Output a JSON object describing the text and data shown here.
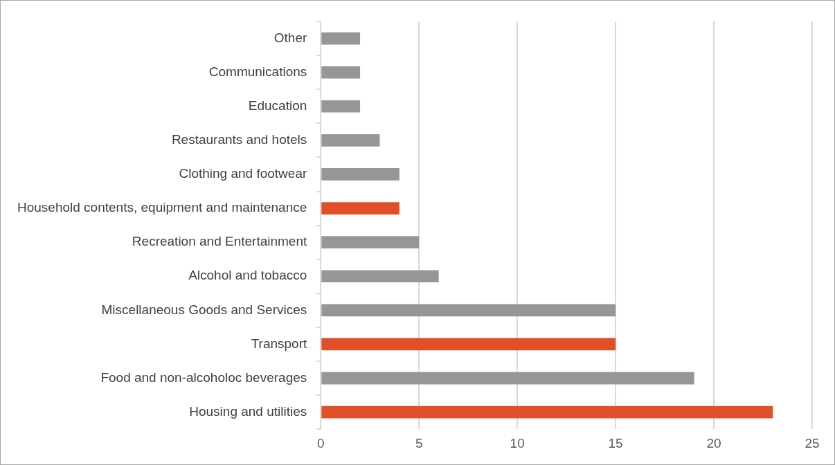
{
  "chart_data": {
    "type": "bar",
    "orientation": "horizontal",
    "categories": [
      "Other",
      "Communications",
      "Education",
      "Restaurants and hotels",
      "Clothing and footwear",
      "Household contents, equipment and maintenance",
      "Recreation and Entertainment",
      "Alcohol and tobacco",
      "Miscellaneous Goods and Services",
      "Transport",
      "Food and non-alcoholoc beverages",
      "Housing and utilities"
    ],
    "values": [
      2,
      2,
      2,
      3,
      4,
      4,
      5,
      6,
      15,
      15,
      19,
      23
    ],
    "colors": [
      "#969696",
      "#969696",
      "#969696",
      "#969696",
      "#969696",
      "#e04f27",
      "#969696",
      "#969696",
      "#969696",
      "#e04f27",
      "#969696",
      "#e04f27"
    ],
    "xlim": [
      0,
      25
    ],
    "xticks": [
      0,
      5,
      10,
      15,
      20,
      25
    ],
    "grid": "x",
    "legend": false
  }
}
